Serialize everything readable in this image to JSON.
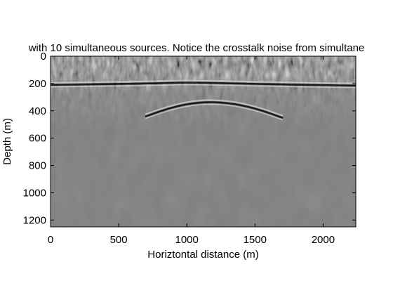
{
  "chart_data": {
    "type": "heatmap",
    "title": "with 10 simultaneous sources. Notice the crosstalk noise from simultane",
    "xlabel": "Horiztontal distance (m)",
    "ylabel": "Depth (m)",
    "xlim": [
      0,
      2240
    ],
    "ylim": [
      1250,
      0
    ],
    "x_ticks": [
      0,
      500,
      1000,
      1500,
      2000
    ],
    "y_ticks": [
      0,
      200,
      400,
      600,
      800,
      1000,
      1200
    ],
    "colormap": "gray",
    "background_gray": "#7f7f7f",
    "grid": false,
    "legend": "none",
    "reflectors": [
      {
        "name": "shallow-reflector",
        "x": [
          0,
          400,
          800,
          1000,
          1300,
          1600,
          2000,
          2240
        ],
        "depth": [
          210,
          205,
          198,
          192,
          198,
          205,
          212,
          215
        ]
      },
      {
        "name": "dome-reflector",
        "x": [
          700,
          900,
          1100,
          1300,
          1500,
          1700
        ],
        "depth": [
          440,
          370,
          335,
          340,
          380,
          450
        ]
      }
    ]
  }
}
